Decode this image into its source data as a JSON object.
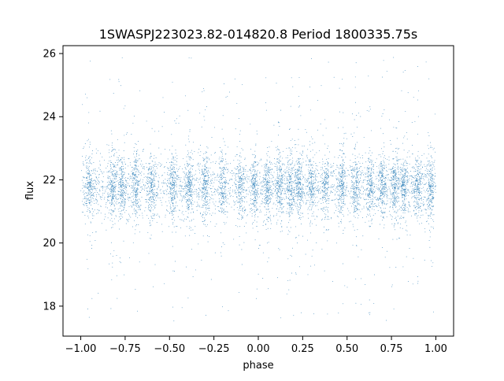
{
  "chart_data": {
    "type": "scatter",
    "title": "1SWASPJ223023.82-014820.8 Period 1800335.75s",
    "xlabel": "phase",
    "ylabel": "flux",
    "xlim": [
      -1.1,
      1.1
    ],
    "ylim": [
      17.05,
      26.25
    ],
    "xticks": [
      -1.0,
      -0.75,
      -0.5,
      -0.25,
      0.0,
      0.25,
      0.5,
      0.75,
      1.0
    ],
    "xtick_labels": [
      "−1.00",
      "−0.75",
      "−0.50",
      "−0.25",
      "0.00",
      "0.25",
      "0.50",
      "0.75",
      "1.00"
    ],
    "yticks": [
      18,
      20,
      22,
      24,
      26
    ],
    "ytick_labels": [
      "18",
      "20",
      "22",
      "24",
      "26"
    ],
    "grid": false,
    "legend": "none",
    "point_color": "#1f77b4",
    "series": [
      {
        "x_range": [
          -1.0,
          1.0
        ],
        "median_flux": 21.8,
        "core_flux_range": [
          20.8,
          22.8
        ],
        "full_flux_range": [
          17.5,
          25.9
        ],
        "dense_phase_bands": [
          -0.95,
          -0.82,
          -0.77,
          -0.69,
          -0.6,
          -0.48,
          -0.39,
          -0.3,
          -0.2,
          -0.1,
          -0.02,
          0.05,
          0.12,
          0.18,
          0.23,
          0.3,
          0.38,
          0.47,
          0.55,
          0.63,
          0.7,
          0.77,
          0.82,
          0.9,
          0.97
        ],
        "points_summary": "thousands of points, roughly symmetric about phase 0, with vertical streaks at regularly spaced phases"
      }
    ]
  }
}
